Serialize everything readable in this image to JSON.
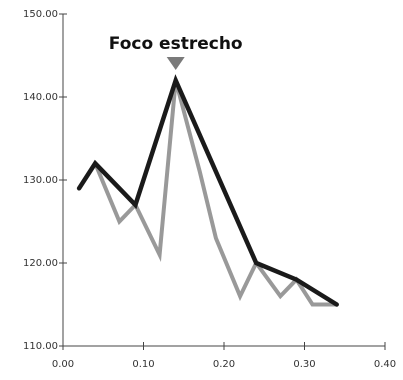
{
  "chart_data": {
    "type": "line",
    "title": "",
    "xlabel": "",
    "ylabel": "",
    "xlim": [
      0,
      0.4
    ],
    "ylim": [
      110,
      150
    ],
    "x_ticks": [
      0.0,
      0.1,
      0.2,
      0.3,
      0.4
    ],
    "x_tick_labels": [
      "0.00",
      "0.10",
      "0.20",
      "0.30",
      "0.40"
    ],
    "y_ticks": [
      110,
      120,
      130,
      140,
      150
    ],
    "y_tick_labels": [
      "110.00",
      "120.00",
      "130.00",
      "140.00",
      "150.00"
    ],
    "grid": false,
    "legend": "none",
    "series": [
      {
        "color": "#1a1a1a",
        "points": [
          [
            0.02,
            129
          ],
          [
            0.04,
            132
          ],
          [
            0.09,
            127
          ],
          [
            0.14,
            142
          ],
          [
            0.24,
            120
          ],
          [
            0.29,
            118
          ],
          [
            0.34,
            115
          ]
        ]
      },
      {
        "color": "#999999",
        "points": [
          [
            0.04,
            132
          ],
          [
            0.07,
            125
          ],
          [
            0.09,
            127
          ],
          [
            0.12,
            121
          ],
          [
            0.14,
            142
          ],
          [
            0.17,
            131
          ],
          [
            0.19,
            123
          ],
          [
            0.22,
            116
          ],
          [
            0.24,
            120
          ],
          [
            0.27,
            116
          ],
          [
            0.29,
            118
          ],
          [
            0.31,
            115
          ],
          [
            0.34,
            115
          ]
        ]
      }
    ],
    "annotation": {
      "text": "Foco estrecho",
      "x": 0.14,
      "marker_color": "#7a7a7a"
    }
  }
}
